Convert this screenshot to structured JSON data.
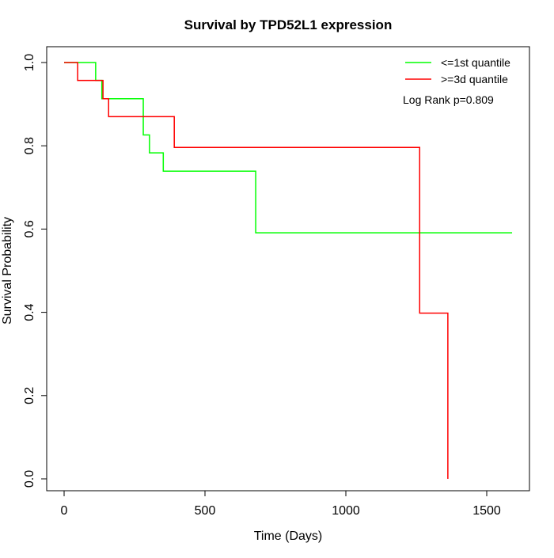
{
  "chart_data": {
    "type": "line",
    "subtype": "kaplan-meier step",
    "title": "Survival by TPD52L1 expression",
    "xlabel": "Time (Days)",
    "ylabel": "Survival Probability",
    "xlim": [
      0,
      1600
    ],
    "ylim": [
      0,
      1
    ],
    "xticks": [
      0,
      500,
      1000,
      1500
    ],
    "xtick_labels": [
      "0",
      "500",
      "1000",
      "1500"
    ],
    "yticks": [
      0,
      0.2,
      0.4,
      0.6,
      0.8,
      1.0
    ],
    "ytick_labels": [
      "0.0",
      "0.2",
      "0.4",
      "0.6",
      "0.8",
      "1.0"
    ],
    "grid": false,
    "legend_position": "top-right",
    "annotation": "Log Rank p=0.809",
    "series": [
      {
        "name": "<=1st quantile",
        "color": "#00ff00",
        "x": [
          0,
          112,
          134,
          281,
          303,
          352,
          680,
          1590
        ],
        "y": [
          1.0,
          0.957,
          0.913,
          0.826,
          0.783,
          0.739,
          0.591,
          0.591
        ]
      },
      {
        "name": ">=3d quantile",
        "color": "#ff0000",
        "x": [
          0,
          48,
          138,
          158,
          391,
          1262,
          1362
        ],
        "y": [
          1.0,
          0.957,
          0.913,
          0.87,
          0.796,
          0.398,
          0.0
        ]
      }
    ]
  }
}
